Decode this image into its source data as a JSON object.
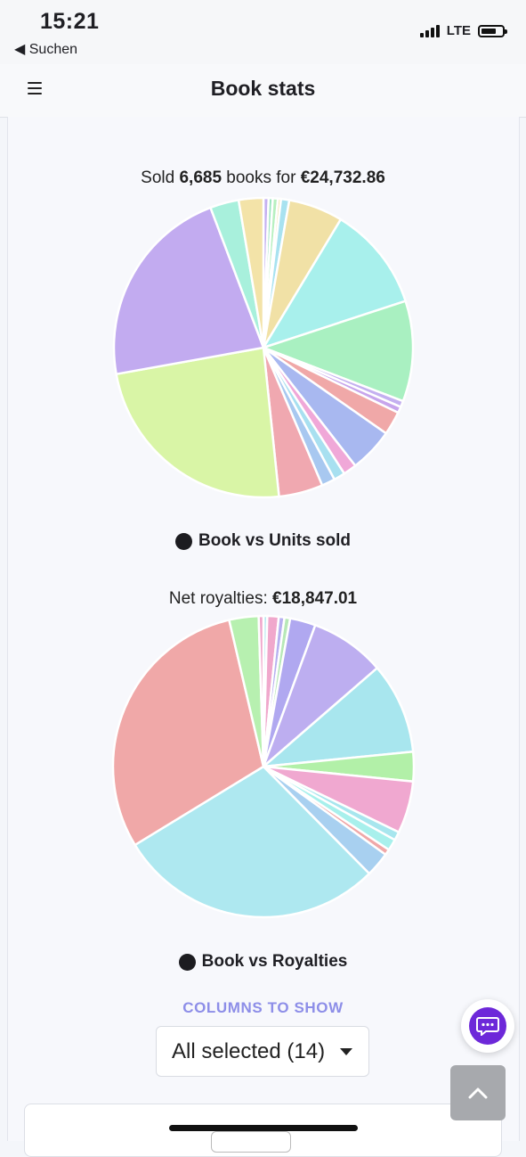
{
  "status_bar": {
    "time": "15:21",
    "back_label": "◀ Suchen",
    "network": "LTE"
  },
  "header": {
    "title": "Book stats",
    "menu_icon": "hamburger-menu-icon"
  },
  "units_chart": {
    "caption_prefix": "Sold ",
    "units": "6,685",
    "caption_middle": " books for ",
    "revenue": "€24,732.86",
    "legend": "Book vs Units sold"
  },
  "royalties_chart": {
    "caption_prefix": "Net royalties: ",
    "royalties": "€18,847.01",
    "legend": "Book vs Royalties"
  },
  "chart_data": [
    {
      "type": "pie",
      "title": "Sold 6,685 books for €24,732.86",
      "legend": [
        "Book vs Units sold"
      ],
      "values": [
        0.5,
        0.4,
        0.5,
        0.3,
        0.8,
        5.3,
        10.2,
        9.8,
        0.6,
        0.6,
        2.3,
        4.3,
        1.3,
        1.1,
        1.3,
        4.3,
        21.5,
        19.9,
        2.8,
        2.4
      ],
      "colors": [
        "#c4b0f0",
        "#9ee6c2",
        "#b7f0c0",
        "#f3e3a8",
        "#a8e2f0",
        "#f1e1a6",
        "#a8f0ec",
        "#a9f0c1",
        "#c4b0f0",
        "#c7a5ec",
        "#f0a8a8",
        "#a8b8f0",
        "#f0a8d8",
        "#a8e0f0",
        "#a8c8f0",
        "#f0a8b0",
        "#d9f5a6",
        "#c2abf0",
        "#a8f0dc",
        "#f3e3a8"
      ]
    },
    {
      "type": "pie",
      "title": "Net royalties: €18,847.01",
      "legend": [
        "Book vs Royalties"
      ],
      "values": [
        0.4,
        1.2,
        0.6,
        0.6,
        2.7,
        7.9,
        9.6,
        3.1,
        5.5,
        0.9,
        1.2,
        0.6,
        2.6,
        28.2,
        29.5,
        3.1,
        0.5
      ],
      "colors": [
        "#b7e8f0",
        "#f0a8cc",
        "#b7b0f0",
        "#b7e8b7",
        "#b0a8f0",
        "#bdaef0",
        "#a8e6ee",
        "#b2f0a8",
        "#f0a8d0",
        "#a8e6ee",
        "#a8f0ec",
        "#f0a8a8",
        "#a8d0f0",
        "#aee8f0",
        "#f0a8a8",
        "#b7f0b0",
        "#f0a8cc"
      ]
    }
  ],
  "columns_label": "COLUMNS TO SHOW",
  "columns_select_value": "All selected (14)",
  "chat_icon": "chat-bubble-icon",
  "scroll_icon": "chevron-up-icon"
}
